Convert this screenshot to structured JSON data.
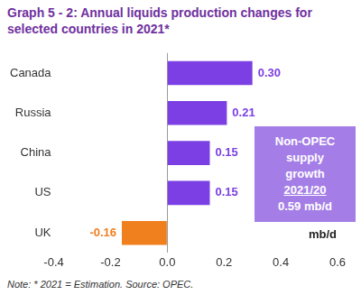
{
  "chart_data": {
    "type": "bar",
    "orientation": "horizontal",
    "title": [
      "Graph 5 - 2: Annual liquids production changes for",
      "selected countries in 2021*"
    ],
    "categories": [
      "Canada",
      "Russia",
      "China",
      "US",
      "UK"
    ],
    "values": [
      0.3,
      0.21,
      0.15,
      0.15,
      -0.16
    ],
    "value_labels": [
      "0.30",
      "0.21",
      "0.15",
      "0.15",
      "-0.16"
    ],
    "colors": [
      "#7b3fe4",
      "#7b3fe4",
      "#7b3fe4",
      "#7b3fe4",
      "#f07f1e"
    ],
    "data_labels": true,
    "xlim": [
      -0.4,
      0.6
    ],
    "xticks": [
      -0.4,
      -0.2,
      {
        "value": 0,
        "label": "0.0"
      },
      0.2,
      0.4,
      0.6
    ],
    "xlabel": "mb/d",
    "annotation": [
      "Non-OPEC",
      "supply",
      "growth",
      "2021/20",
      "0.59 mb/d"
    ],
    "note": "Note: * 2021 = Estimation. Source: OPEC.",
    "grid": false
  }
}
